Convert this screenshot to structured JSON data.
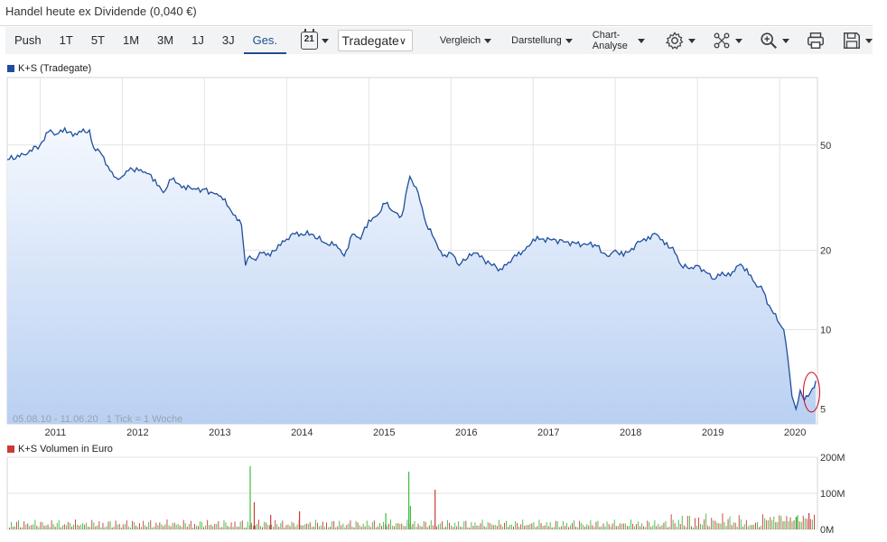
{
  "header": {
    "note": "Handel heute ex Dividende (0,040 €)"
  },
  "toolbar": {
    "ranges": [
      "Push",
      "1T",
      "5T",
      "1M",
      "3M",
      "1J",
      "3J",
      "Ges."
    ],
    "active_range": "Ges.",
    "calendar_day": "21",
    "exchange": "Tradegate",
    "menus": [
      "Vergleich",
      "Darstellung",
      "Chart-Analyse"
    ]
  },
  "chart_data": [
    {
      "type": "area",
      "series": [
        {
          "name": "K+S (Tradegate)"
        }
      ],
      "date_range": "05.08.10 - 11.06.20",
      "tick_note": "1 Tick = 1 Woche",
      "y_scale": "log",
      "y_ticks": [
        "50",
        "20",
        "10",
        "5"
      ],
      "x_ticks": [
        "2011",
        "2012",
        "2013",
        "2014",
        "2015",
        "2016",
        "2017",
        "2018",
        "2019",
        "2020"
      ],
      "x": [
        2010.6,
        2010.8,
        2011.0,
        2011.1,
        2011.2,
        2011.3,
        2011.4,
        2011.5,
        2011.6,
        2011.65,
        2011.75,
        2011.85,
        2011.95,
        2012.0,
        2012.1,
        2012.2,
        2012.3,
        2012.4,
        2012.5,
        2012.6,
        2012.65,
        2012.75,
        2012.85,
        2013.0,
        2013.1,
        2013.2,
        2013.3,
        2013.45,
        2013.5,
        2013.55,
        2013.6,
        2013.7,
        2013.8,
        2013.9,
        2014.0,
        2014.1,
        2014.3,
        2014.5,
        2014.6,
        2014.7,
        2014.8,
        2014.9,
        2015.0,
        2015.1,
        2015.2,
        2015.3,
        2015.4,
        2015.5,
        2015.55,
        2015.6,
        2015.7,
        2015.8,
        2015.9,
        2016.0,
        2016.1,
        2016.15,
        2016.3,
        2016.5,
        2016.6,
        2016.7,
        2016.8,
        2016.9,
        2017.0,
        2017.2,
        2017.4,
        2017.6,
        2017.75,
        2017.9,
        2018.0,
        2018.1,
        2018.3,
        2018.4,
        2018.5,
        2018.6,
        2018.7,
        2018.8,
        2018.9,
        2019.0,
        2019.1,
        2019.2,
        2019.3,
        2019.4,
        2019.5,
        2019.6,
        2019.7,
        2019.8,
        2019.85,
        2019.95,
        2020.0,
        2020.05,
        2020.1,
        2020.15,
        2020.2,
        2020.25,
        2020.3,
        2020.35,
        2020.4,
        2020.44
      ],
      "y": [
        44,
        46,
        50,
        56,
        55,
        58,
        54,
        56,
        57,
        49,
        46,
        40,
        37,
        38,
        41,
        40,
        39,
        37,
        33,
        37,
        36,
        35,
        34,
        34,
        33,
        32,
        29,
        25,
        17.5,
        19,
        18.5,
        19.5,
        19,
        21,
        22,
        23,
        23,
        21,
        21,
        19,
        23,
        22,
        26,
        27,
        30,
        28,
        27,
        38,
        35,
        33,
        25,
        22,
        19,
        19.5,
        17.5,
        18.5,
        19.5,
        17.5,
        17,
        18,
        19,
        20,
        22,
        22,
        21.5,
        21,
        21,
        19,
        20,
        19,
        21.5,
        22.5,
        23,
        21,
        20.5,
        17.5,
        17,
        17.5,
        16.5,
        15.5,
        16.5,
        16,
        17.5,
        17,
        15,
        14,
        12.5,
        11.5,
        10.5,
        10,
        7.8,
        5.6,
        5.0,
        5.9,
        5.4,
        5.6,
        6.0,
        6.4
      ],
      "ylim": [
        4.4,
        90
      ]
    },
    {
      "type": "bar",
      "series": [
        {
          "name": "K+S Volumen in Euro"
        }
      ],
      "y_ticks": [
        "200M",
        "100M",
        "0M"
      ],
      "ylim": [
        0,
        200
      ],
      "spikes": [
        {
          "x": 2013.55,
          "value": 175
        },
        {
          "x": 2013.6,
          "value": 75
        },
        {
          "x": 2015.48,
          "value": 160
        },
        {
          "x": 2015.8,
          "value": 110
        },
        {
          "x": 2015.5,
          "value": 65
        },
        {
          "x": 2014.15,
          "value": 50
        },
        {
          "x": 2015.2,
          "value": 45
        },
        {
          "x": 2020.35,
          "value": 45
        },
        {
          "x": 2020.2,
          "value": 35
        },
        {
          "x": 2013.8,
          "value": 40
        }
      ]
    }
  ],
  "colors": {
    "line": "#1f4e9e",
    "area_top": "#f4f8fe",
    "area_bottom": "#b9d0f2",
    "vol_up": "#3fba3f",
    "vol_down": "#c93a3a",
    "marker": "#d0021b"
  }
}
